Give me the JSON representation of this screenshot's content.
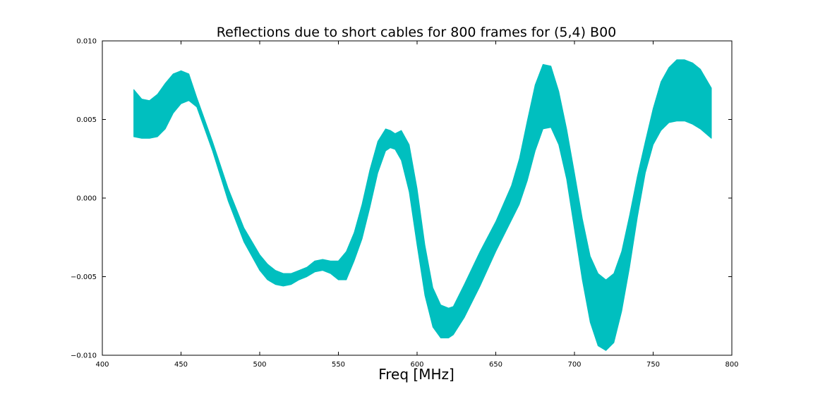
{
  "chart_data": {
    "type": "area",
    "title": "Reflections due to short cables for 800 frames for (5,4) B00",
    "xlabel": "Freq [MHz]",
    "ylabel": "",
    "xlim": [
      400,
      800
    ],
    "ylim": [
      -0.01,
      0.01
    ],
    "grid": false,
    "legend": "none",
    "color": "#00bfbf",
    "x_ticks": [
      400,
      450,
      500,
      550,
      600,
      650,
      700,
      750,
      800
    ],
    "x_tick_labels": [
      "400",
      "450",
      "500",
      "550",
      "600",
      "650",
      "700",
      "750",
      "800"
    ],
    "y_ticks": [
      -0.01,
      -0.005,
      0.0,
      0.005,
      0.01
    ],
    "y_tick_labels": [
      "−0.010",
      "−0.005",
      "0.000",
      "0.005",
      "0.010"
    ],
    "series": [
      {
        "label_type": "envelope of 800 frames",
        "x": [
          420,
          425,
          430,
          435,
          440,
          445,
          450,
          455,
          460,
          465,
          470,
          475,
          480,
          490,
          500,
          505,
          510,
          515,
          520,
          525,
          530,
          535,
          540,
          545,
          550,
          555,
          560,
          565,
          570,
          575,
          580,
          583,
          586,
          590,
          595,
          600,
          605,
          610,
          615,
          620,
          623,
          630,
          640,
          650,
          660,
          665,
          670,
          675,
          680,
          685,
          690,
          695,
          700,
          705,
          710,
          715,
          720,
          725,
          730,
          735,
          740,
          745,
          750,
          755,
          760,
          765,
          770,
          775,
          780,
          787
        ],
        "upper": [
          0.0069,
          0.0063,
          0.0062,
          0.0066,
          0.0073,
          0.0079,
          0.0081,
          0.0079,
          0.0064,
          0.005,
          0.0036,
          0.0021,
          0.0006,
          -0.0019,
          -0.0036,
          -0.0042,
          -0.0046,
          -0.0048,
          -0.0048,
          -0.0046,
          -0.0044,
          -0.004,
          -0.0039,
          -0.004,
          -0.004,
          -0.0034,
          -0.0022,
          -0.0004,
          0.0018,
          0.0036,
          0.0044,
          0.0043,
          0.0041,
          0.0043,
          0.0034,
          0.0006,
          -0.003,
          -0.0057,
          -0.0068,
          -0.007,
          -0.0069,
          -0.0055,
          -0.0034,
          -0.0015,
          0.0008,
          0.0025,
          0.0049,
          0.0072,
          0.0085,
          0.0084,
          0.0068,
          0.0044,
          0.0016,
          -0.0013,
          -0.0037,
          -0.0048,
          -0.0052,
          -0.0048,
          -0.0034,
          -0.0011,
          0.0014,
          0.0036,
          0.0057,
          0.0074,
          0.0083,
          0.0088,
          0.0088,
          0.0086,
          0.0082,
          0.007
        ],
        "lower": [
          0.0039,
          0.0038,
          0.0038,
          0.0039,
          0.0044,
          0.0054,
          0.006,
          0.0062,
          0.0058,
          0.0044,
          0.003,
          0.0014,
          -0.0002,
          -0.0028,
          -0.0046,
          -0.0052,
          -0.0055,
          -0.0056,
          -0.0055,
          -0.0052,
          -0.005,
          -0.0047,
          -0.0046,
          -0.0048,
          -0.0052,
          -0.0052,
          -0.004,
          -0.0026,
          -0.0006,
          0.0016,
          0.003,
          0.0032,
          0.0031,
          0.0024,
          0.0004,
          -0.003,
          -0.0062,
          -0.0082,
          -0.0089,
          -0.0089,
          -0.0087,
          -0.0076,
          -0.0056,
          -0.0034,
          -0.0014,
          -0.0004,
          0.0011,
          0.003,
          0.0044,
          0.0045,
          0.0034,
          0.0012,
          -0.002,
          -0.0052,
          -0.0079,
          -0.0094,
          -0.0097,
          -0.0092,
          -0.0072,
          -0.0044,
          -0.0012,
          0.0016,
          0.0034,
          0.0043,
          0.0048,
          0.0049,
          0.0049,
          0.0047,
          0.0044,
          0.0038
        ]
      }
    ]
  }
}
